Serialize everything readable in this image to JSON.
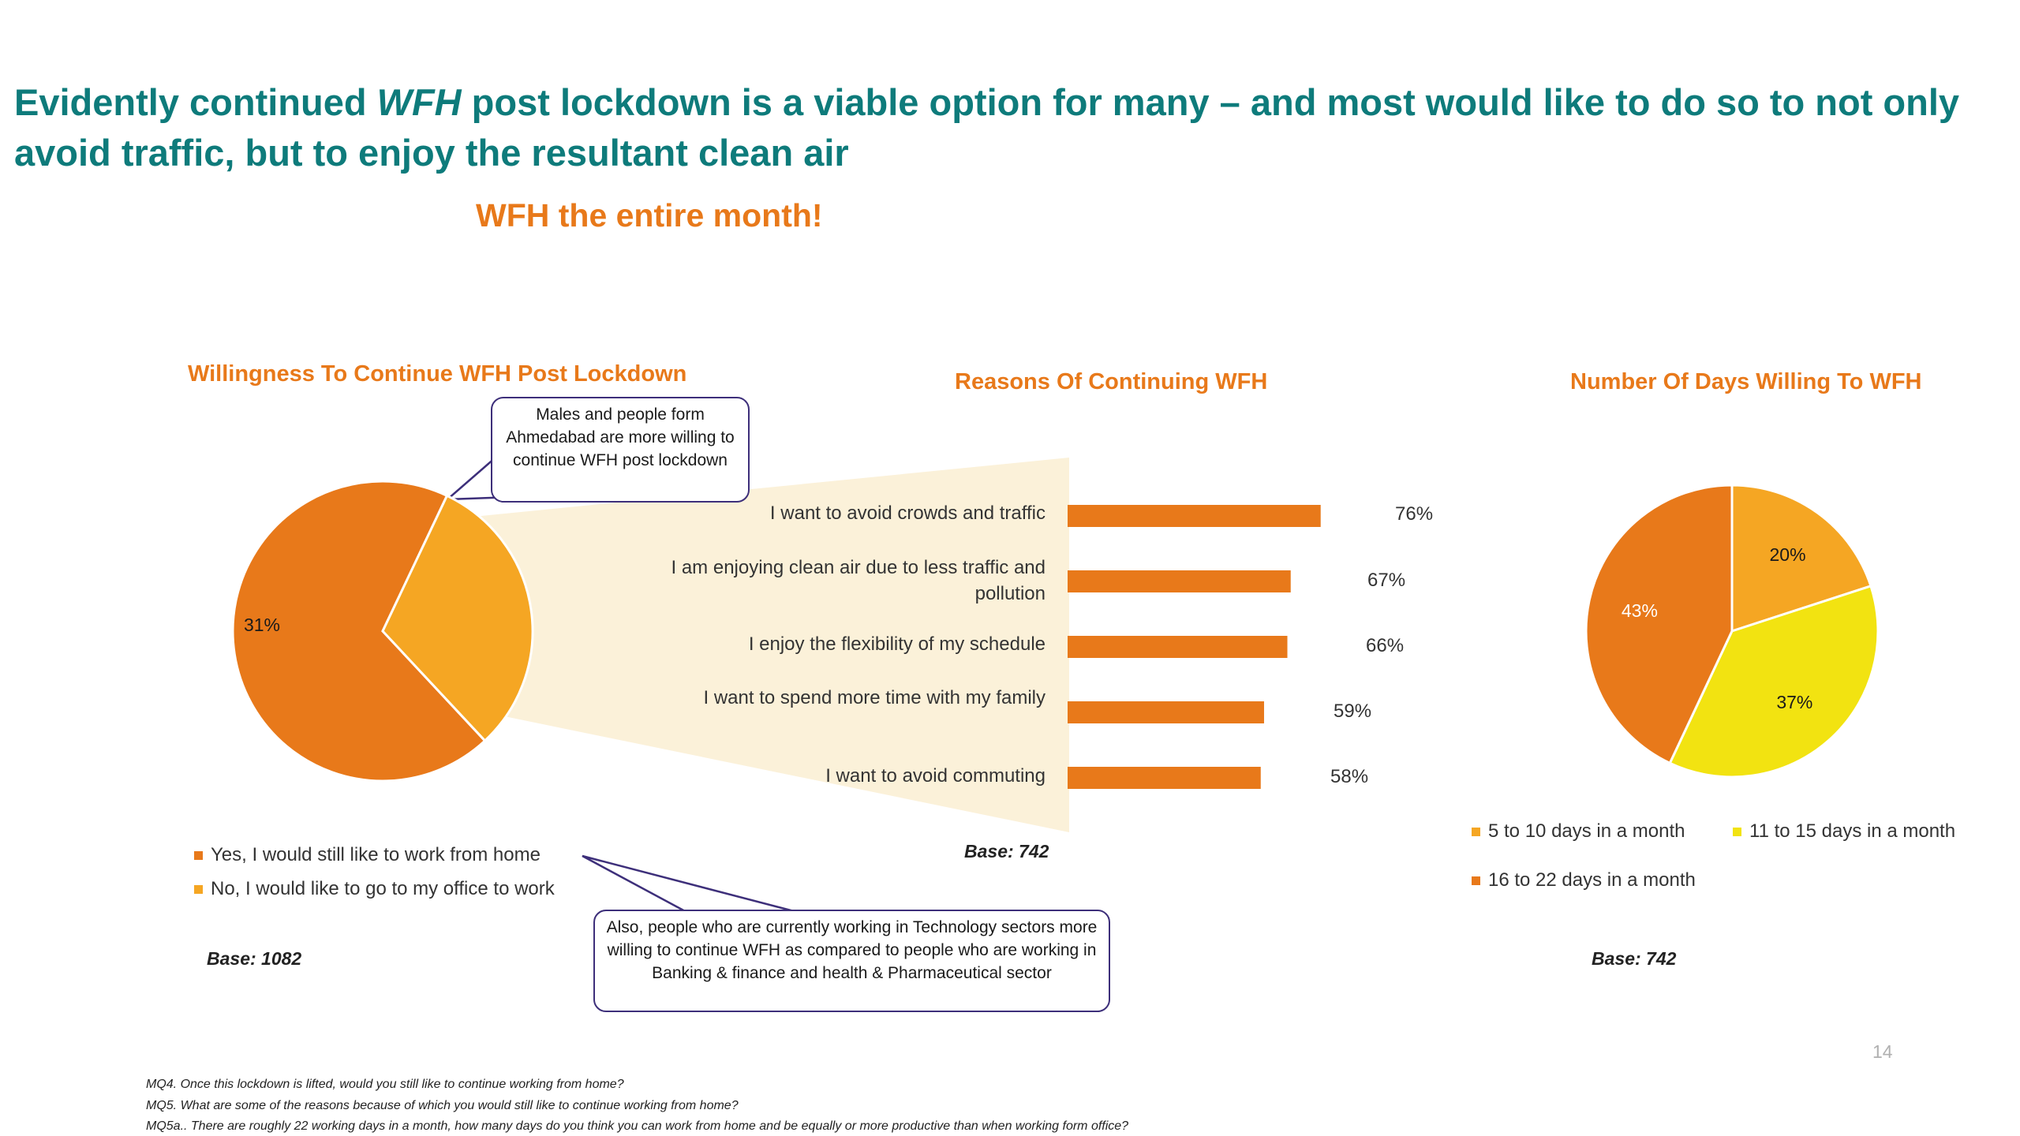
{
  "title": {
    "part1": "Evidently continued ",
    "part2_italic": "WFH",
    "part3": " post lockdown is a viable option for many  – and most would like to do so to not only",
    "line2": "avoid traffic, but to enjoy the resultant clean air"
  },
  "subtitle": "WFH the entire month!",
  "page_number": "14",
  "colors": {
    "title": "#0e7b7b",
    "accent": "#e8791a",
    "light_orange": "#f5a623",
    "yellow": "#f2e311",
    "callout_border": "#3d2f7a",
    "zoom_band": "#fbf1d9"
  },
  "callouts": {
    "willingness": "Males and people form Ahmedabad  are more willing to continue WFH post lockdown",
    "sector": "Also, people who are currently working in Technology sectors more willing to continue WFH as compared to people who are working in Banking & finance  and health & Pharmaceutical sector"
  },
  "footnotes": [
    "MQ4. Once this lockdown is lifted, would you still like to continue working from home?",
    "MQ5. What are some of the reasons because of which you would still like to continue working from home?",
    "MQ5a.. There are roughly 22 working days in a month, how many days do you think you can work from home and be equally or more productive than when working form office?"
  ],
  "chart_data": [
    {
      "type": "pie",
      "title": "Willingness To Continue WFH Post Lockdown",
      "categories": [
        "Yes, I would still like to work from home",
        "No, I would like to go to my office to work"
      ],
      "values": [
        69,
        31
      ],
      "labels": [
        "69%",
        "31%"
      ],
      "colors": [
        "#e8791a",
        "#f5a623"
      ],
      "legend_position": "bottom-left",
      "base": "Base: 1082"
    },
    {
      "type": "bar",
      "orientation": "horizontal",
      "title": "Reasons Of Continuing WFH",
      "categories": [
        "I want to avoid crowds and traffic",
        "I am enjoying clean air due to less traffic and pollution",
        "I enjoy the flexibility of my schedule",
        "I want to spend more time with my family",
        "I want to avoid commuting"
      ],
      "values": [
        76,
        67,
        66,
        59,
        58
      ],
      "labels": [
        "76%",
        "67%",
        "66%",
        "59%",
        "58%"
      ],
      "color": "#e8791a",
      "xlim": [
        0,
        100
      ],
      "grid": false,
      "base": "Base: 742"
    },
    {
      "type": "pie",
      "title": "Number Of Days Willing To WFH",
      "categories": [
        "5 to 10 days in a month",
        "11 to 15 days in a month",
        "16 to 22 days in a month"
      ],
      "values": [
        20,
        37,
        43
      ],
      "labels": [
        "20%",
        "37%",
        "43%"
      ],
      "colors": [
        "#f5a623",
        "#f2e311",
        "#e8791a"
      ],
      "legend_position": "bottom",
      "base": "Base: 742"
    }
  ]
}
